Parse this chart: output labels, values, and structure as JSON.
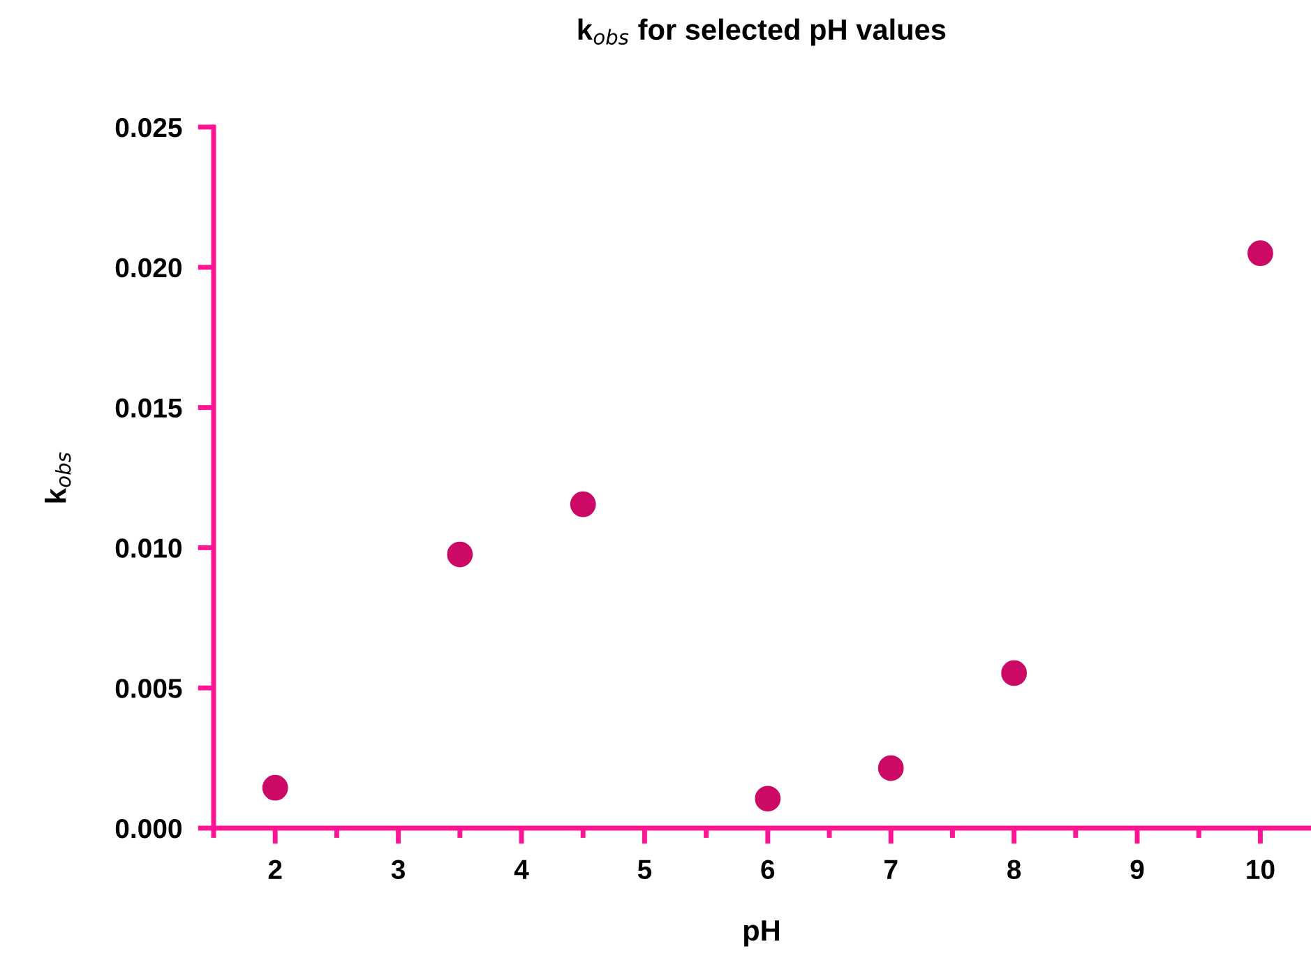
{
  "chart_data": {
    "type": "scatter",
    "title": "k$_{obs}$ for selected pH values",
    "xlabel": "pH",
    "ylabel": "k$_{obs}$",
    "x": [
      2,
      3.5,
      4.5,
      6,
      7,
      8,
      10
    ],
    "series": [
      {
        "color": "#cc0a66",
        "values": [
          0.00144,
          0.00976,
          0.01155,
          0.00105,
          0.00214,
          0.00553,
          0.0205
        ]
      }
    ],
    "xlim": [
      1.5,
      10.4
    ],
    "xticks": [
      2,
      3,
      4,
      5,
      6,
      7,
      8,
      9,
      10
    ],
    "ylim": [
      0,
      0.025
    ],
    "yticks": [
      {
        "value": 0,
        "label": "0.000"
      },
      {
        "value": 0.005,
        "label": "0.005"
      },
      {
        "value": 0.01,
        "label": "0.010"
      },
      {
        "value": 0.015,
        "label": "0.015"
      },
      {
        "value": 0.02,
        "label": "0.020"
      },
      {
        "value": 0.025,
        "label": "0.025"
      }
    ],
    "marker": "circle",
    "grid": false,
    "legend": false
  }
}
